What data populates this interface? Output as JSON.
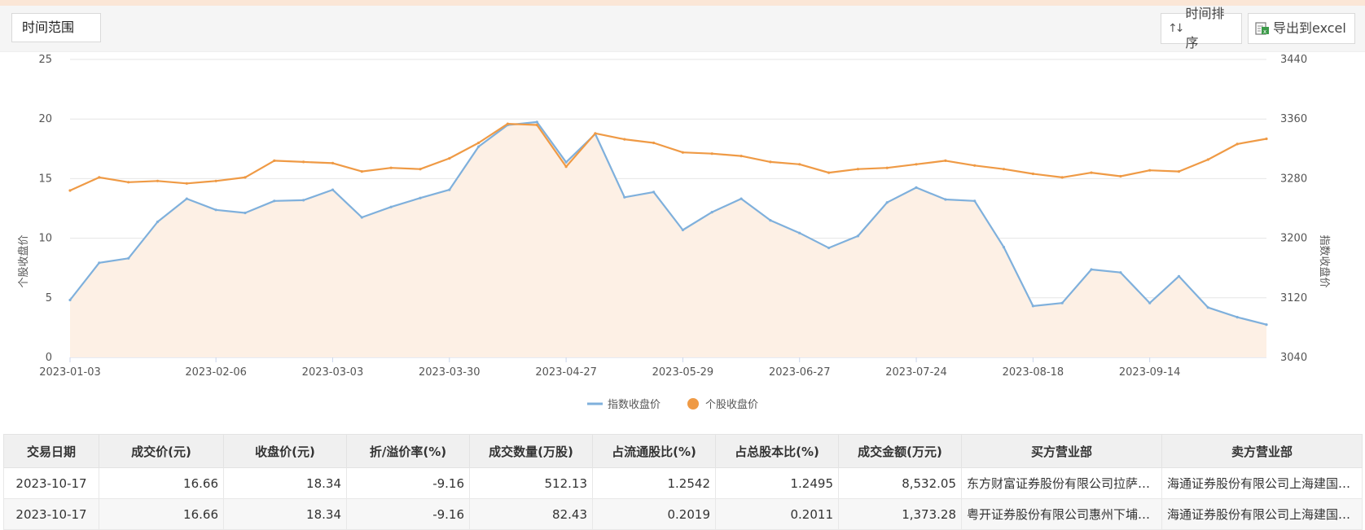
{
  "toolbar": {
    "time_range_label": "时间范围",
    "sort_label": "时间排序",
    "export_label": "导出到excel"
  },
  "chart_data": {
    "type": "line",
    "x": [
      "2023-01-03",
      "2023-01-10",
      "2023-01-17",
      "2023-01-24",
      "2023-01-31",
      "2023-02-06",
      "2023-02-13",
      "2023-02-20",
      "2023-02-27",
      "2023-03-03",
      "2023-03-10",
      "2023-03-17",
      "2023-03-24",
      "2023-03-30",
      "2023-04-06",
      "2023-04-13",
      "2023-04-20",
      "2023-04-27",
      "2023-05-05",
      "2023-05-12",
      "2023-05-19",
      "2023-05-29",
      "2023-06-05",
      "2023-06-12",
      "2023-06-19",
      "2023-06-27",
      "2023-07-04",
      "2023-07-11",
      "2023-07-18",
      "2023-07-24",
      "2023-07-31",
      "2023-08-07",
      "2023-08-14",
      "2023-08-18",
      "2023-08-25",
      "2023-09-01",
      "2023-09-08",
      "2023-09-14",
      "2023-09-21",
      "2023-10-04",
      "2023-10-11",
      "2023-10-17"
    ],
    "x_ticks": [
      "2023-01-03",
      "2023-02-06",
      "2023-03-03",
      "2023-03-30",
      "2023-04-27",
      "2023-05-29",
      "2023-06-27",
      "2023-07-24",
      "2023-08-18",
      "2023-09-14"
    ],
    "y_ticks_left": [
      "0",
      "5",
      "10",
      "15",
      "20",
      "25"
    ],
    "y_ticks_right": [
      "3040",
      "3120",
      "3200",
      "3280",
      "3360",
      "3440"
    ],
    "ylabel_left": "个股收盘价",
    "ylabel_right": "指数收盘价",
    "ylim_left": [
      0,
      25
    ],
    "ylim_right": [
      3040,
      3440
    ],
    "grid": true,
    "legend_position": "bottom",
    "series": [
      {
        "name": "指数收盘价",
        "axis": "right",
        "color": "#7fb0dc",
        "values": [
          3117,
          3167,
          3173,
          3222,
          3253,
          3238,
          3234,
          3250,
          3251,
          3265,
          3228,
          3242,
          3254,
          3265,
          3323,
          3352,
          3356,
          3302,
          3340,
          3255,
          3262,
          3211,
          3235,
          3253,
          3224,
          3207,
          3187,
          3203,
          3248,
          3268,
          3252,
          3250,
          3188,
          3109,
          3113,
          3158,
          3154,
          3113,
          3149,
          3107,
          3094,
          3084
        ]
      },
      {
        "name": "个股收盘价",
        "axis": "left",
        "color": "#ef9a45",
        "values": [
          14.0,
          15.1,
          14.7,
          14.8,
          14.6,
          14.8,
          15.1,
          16.5,
          16.4,
          16.3,
          15.6,
          15.9,
          15.8,
          16.7,
          18.0,
          19.6,
          19.5,
          16.0,
          18.8,
          18.3,
          18.0,
          17.2,
          17.1,
          16.9,
          16.4,
          16.2,
          15.5,
          15.8,
          15.9,
          16.2,
          16.5,
          16.1,
          15.8,
          15.4,
          15.1,
          15.5,
          15.2,
          15.7,
          15.6,
          16.6,
          17.9,
          18.34
        ]
      }
    ]
  },
  "table": {
    "headers": [
      "交易日期",
      "成交价(元)",
      "收盘价(元)",
      "折/溢价率(%)",
      "成交数量(万股)",
      "占流通股比(%)",
      "占总股本比(%)",
      "成交金额(万元)",
      "买方营业部",
      "卖方营业部"
    ],
    "rows": [
      [
        "2023-10-17",
        "16.66",
        "18.34",
        "-9.16",
        "512.13",
        "1.2542",
        "1.2495",
        "8,532.05",
        "东方财富证券股份有限公司拉萨东环路第二证券营业部",
        "海通证券股份有限公司上海建国西路证券营业部"
      ],
      [
        "2023-10-17",
        "16.66",
        "18.34",
        "-9.16",
        "82.43",
        "0.2019",
        "0.2011",
        "1,373.28",
        "粤开证券股份有限公司惠州下埔路证券营业部",
        "海通证券股份有限公司上海建国西路证券营业部"
      ]
    ]
  }
}
